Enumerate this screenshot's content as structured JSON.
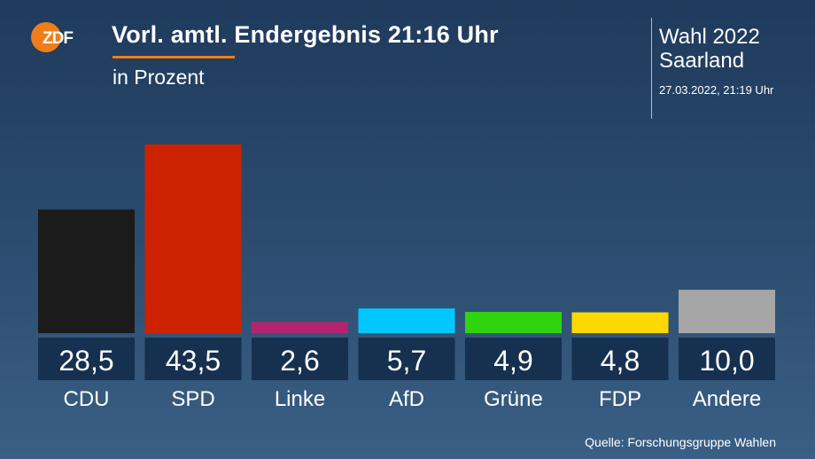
{
  "header": {
    "title": "Vorl. amtl. Endergebnis 21:16 Uhr",
    "subtitle": "in Prozent",
    "election_line1": "Wahl 2022",
    "election_line2": "Saarland",
    "timestamp": "27.03.2022, 21:19 Uhr",
    "accent_color": "#f07d19"
  },
  "logo": {
    "text": "ZDF",
    "color": "#f07d19"
  },
  "source": "Quelle: Forschungsgruppe Wahlen",
  "chart_data": {
    "type": "bar",
    "categories": [
      "CDU",
      "SPD",
      "Linke",
      "AfD",
      "Grüne",
      "FDP",
      "Andere"
    ],
    "values": [
      28.5,
      43.5,
      2.6,
      5.7,
      4.9,
      4.8,
      10.0
    ],
    "value_labels": [
      "28,5",
      "43,5",
      "2,6",
      "5,7",
      "4,9",
      "4,8",
      "10,0"
    ],
    "colors": [
      "#1b1b1b",
      "#cc2200",
      "#b3246e",
      "#00c8ff",
      "#2fd40f",
      "#ffd800",
      "#a6a6a6"
    ],
    "title": "Vorl. amtl. Endergebnis 21:16 Uhr",
    "xlabel": "",
    "ylabel": "",
    "ylim": [
      0,
      43.5
    ],
    "grid": false,
    "legend": "none"
  }
}
